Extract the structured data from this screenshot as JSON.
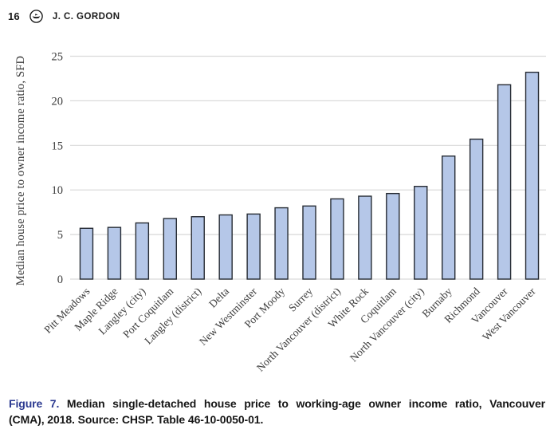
{
  "header": {
    "page_number": "16",
    "author": "J. C. GORDON",
    "logo_icon": "journal-logo"
  },
  "chart_data": {
    "type": "bar",
    "title": "",
    "xlabel": "",
    "ylabel": "Median house price to owner income ratio, SFD",
    "categories": [
      "Pitt Meadows",
      "Maple Ridge",
      "Langley (city)",
      "Port Coquitlam",
      "Langley (district)",
      "Delta",
      "New Westminster",
      "Port Moody",
      "Surrey",
      "North Vancouver (district)",
      "White Rock",
      "Coquitlam",
      "North Vancouver (city)",
      "Burnaby",
      "Richmond",
      "Vancouver",
      "West Vancouver"
    ],
    "values": [
      5.7,
      5.8,
      6.3,
      6.8,
      7.0,
      7.2,
      7.3,
      8.0,
      8.2,
      9.0,
      9.3,
      9.6,
      10.4,
      13.8,
      15.7,
      21.8,
      23.2
    ],
    "ylim": [
      0,
      25
    ],
    "yticks": [
      0,
      5,
      10,
      15,
      20,
      25
    ],
    "grid": true,
    "legend": "none",
    "colors": {
      "bar_fill": "#b5c7e8",
      "bar_border": "#262b33",
      "gridline": "#d9d9d9",
      "axis_text": "#3a3a3a"
    }
  },
  "caption": {
    "label": "Figure 7.",
    "text_line1": "Median single-detached house price to working-age owner income ratio, Vancouver",
    "text_line2": "(CMA), 2018. Source: CHSP. Table 46-10-0050-01.",
    "full_text": "Figure 7. Median single-detached house price to working-age owner income ratio, Vancouver (CMA), 2018. Source: CHSP. Table 46-10-0050-01.",
    "label_color": "#2b3990"
  }
}
